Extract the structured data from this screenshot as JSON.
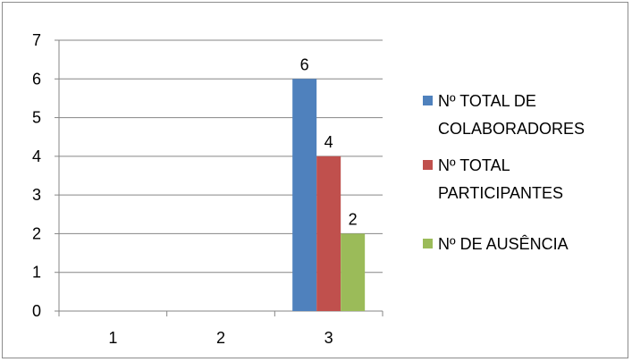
{
  "chart_data": {
    "type": "bar",
    "categories": [
      "1",
      "2",
      "3"
    ],
    "series": [
      {
        "name": "Nº TOTAL DE COLABORADORES",
        "legend_lines": [
          "Nº TOTAL DE",
          "COLABORADORES"
        ],
        "color": "#4f81bd",
        "values": [
          0,
          0,
          6
        ]
      },
      {
        "name": "Nº TOTAL PARTICIPANTES",
        "legend_lines": [
          "Nº TOTAL",
          "PARTICIPANTES"
        ],
        "color": "#c0504d",
        "values": [
          0,
          0,
          4
        ]
      },
      {
        "name": "Nº DE AUSÊNCIA",
        "legend_lines": [
          "Nº DE AUSÊNCIA"
        ],
        "color": "#9bbb59",
        "values": [
          0,
          0,
          2
        ]
      }
    ],
    "y_ticks": [
      "0",
      "1",
      "2",
      "3",
      "4",
      "5",
      "6",
      "7"
    ],
    "ylim": [
      0,
      7
    ],
    "grid": true,
    "gridline_color": "#868686",
    "legend_position": "right",
    "data_labels_on": [
      2
    ]
  }
}
